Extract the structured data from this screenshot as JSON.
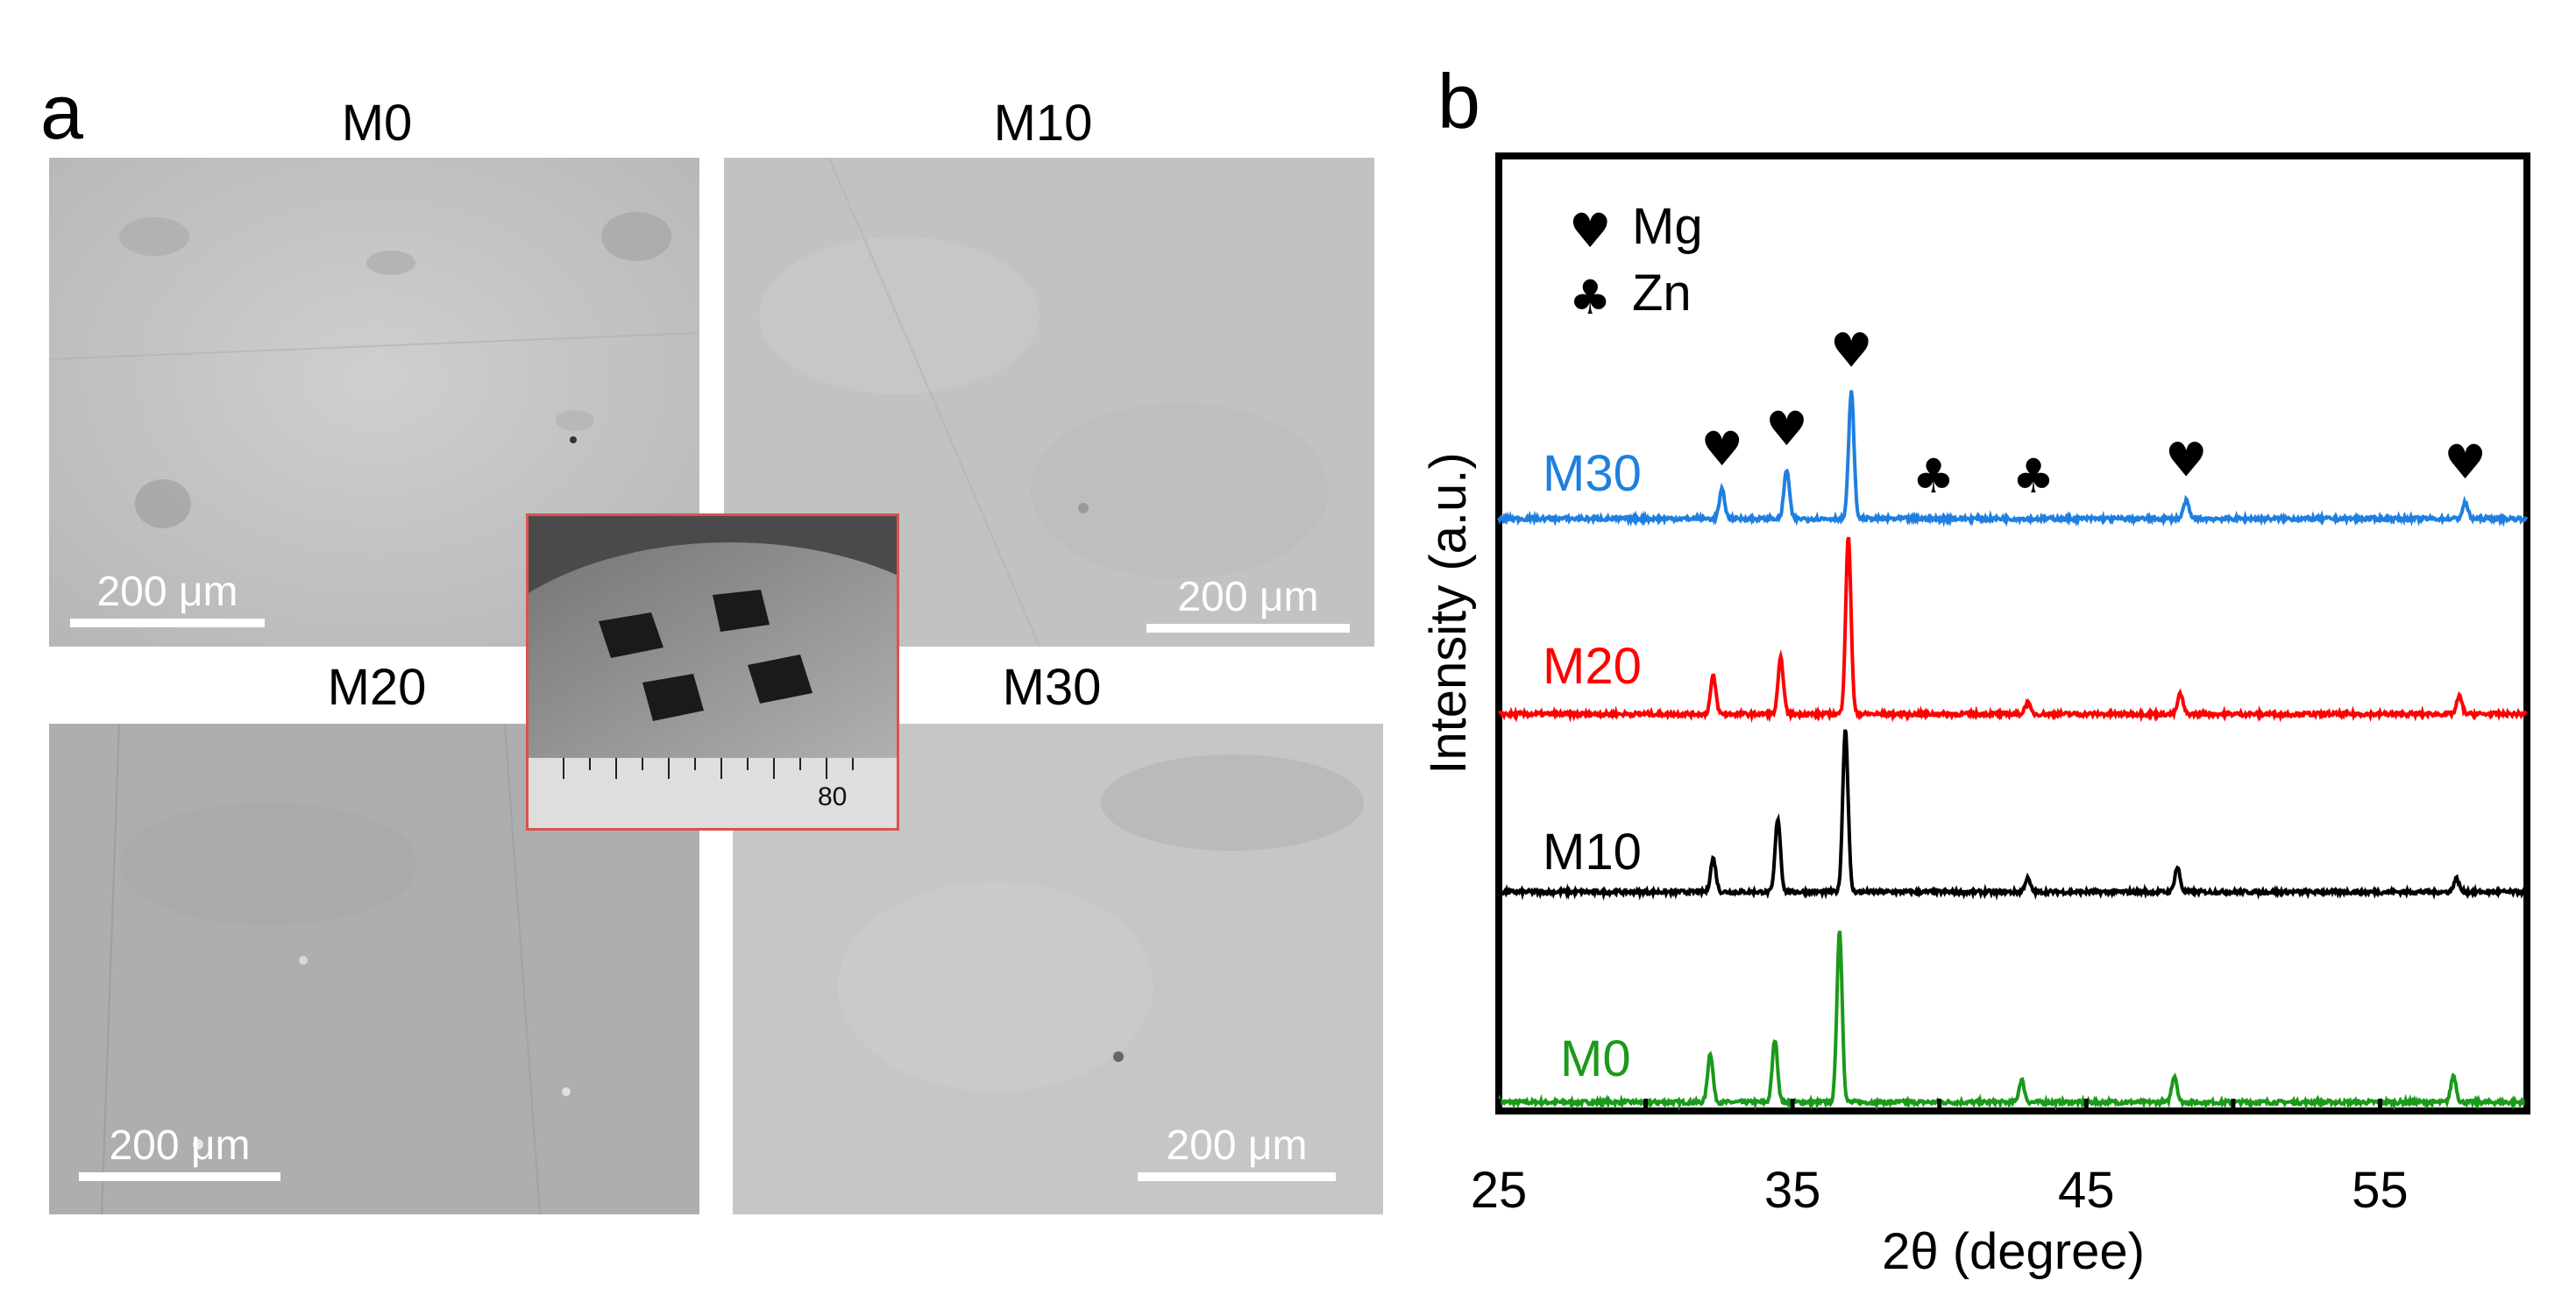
{
  "panel_a": {
    "letter": "a",
    "images": [
      {
        "title": "M0",
        "scale_label": "200 μm"
      },
      {
        "title": "M10",
        "scale_label": "200 μm"
      },
      {
        "title": "M20",
        "scale_label": "200 μm"
      },
      {
        "title": "M30",
        "scale_label": "200 μm"
      }
    ],
    "inset": {
      "ruler_label": "80"
    }
  },
  "panel_b": {
    "letter": "b"
  },
  "chart_data": {
    "type": "line",
    "xlabel": "2θ  (degree)",
    "ylabel": "Intensity  (a.u.)",
    "xlim": [
      25,
      60
    ],
    "xticks": [
      25,
      35,
      45,
      55
    ],
    "grid": false,
    "legend": {
      "placement": "top-left",
      "entries": [
        {
          "symbol": "♥",
          "label": "Mg"
        },
        {
          "symbol": "♣",
          "label": "Zn"
        }
      ]
    },
    "series": [
      {
        "name": "M0",
        "color": "#1a9a1a",
        "offset": 0,
        "peaks": [
          [
            32.2,
            0.22
          ],
          [
            34.4,
            0.28
          ],
          [
            36.6,
            0.77
          ],
          [
            42.8,
            0.1
          ],
          [
            48.0,
            0.12
          ],
          [
            57.5,
            0.12
          ]
        ]
      },
      {
        "name": "M10",
        "color": "#000000",
        "offset": 1,
        "peaks": [
          [
            32.3,
            0.15
          ],
          [
            34.5,
            0.33
          ],
          [
            36.8,
            0.73
          ],
          [
            43.0,
            0.06
          ],
          [
            48.1,
            0.11
          ],
          [
            57.6,
            0.06
          ]
        ]
      },
      {
        "name": "M20",
        "color": "#ff0000",
        "offset": 2,
        "peaks": [
          [
            32.3,
            0.17
          ],
          [
            34.6,
            0.25
          ],
          [
            36.9,
            0.79
          ],
          [
            43.0,
            0.05
          ],
          [
            48.2,
            0.09
          ],
          [
            57.7,
            0.08
          ]
        ]
      },
      {
        "name": "M30",
        "color": "#1f7fe0",
        "offset": 3,
        "peaks": [
          [
            32.6,
            0.13
          ],
          [
            34.8,
            0.22
          ],
          [
            37.0,
            0.57
          ],
          [
            48.4,
            0.08
          ],
          [
            57.9,
            0.07
          ]
        ]
      }
    ],
    "annotations": [
      {
        "symbol": "♥",
        "x": 32.6
      },
      {
        "symbol": "♥",
        "x": 34.8
      },
      {
        "symbol": "♥",
        "x": 37.0
      },
      {
        "symbol": "♣",
        "x": 39.8
      },
      {
        "symbol": "♣",
        "x": 43.2
      },
      {
        "symbol": "♥",
        "x": 48.4
      },
      {
        "symbol": "♥",
        "x": 57.9
      }
    ]
  }
}
